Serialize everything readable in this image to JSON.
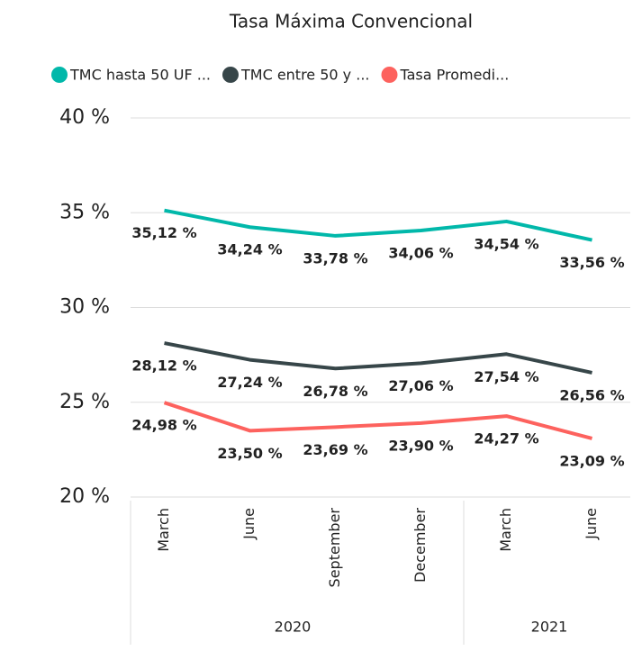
{
  "chart_data": {
    "type": "line",
    "title": "Tasa Máxima Convencional",
    "categories": [
      "March",
      "June",
      "September",
      "December",
      "March",
      "June"
    ],
    "category_years": [
      "2020",
      null,
      null,
      null,
      "2021",
      null
    ],
    "series": [
      {
        "name": "TMC hasta 50 UF ...",
        "color": "#01B8AA",
        "values": [
          35.12,
          34.24,
          33.78,
          34.06,
          34.54,
          33.56
        ],
        "value_labels": [
          "35,12 %",
          "34,24 %",
          "33,78 %",
          "34,06 %",
          "34,54 %",
          "33,56 %"
        ]
      },
      {
        "name": "TMC entre 50 y ...",
        "color": "#374649",
        "values": [
          28.12,
          27.24,
          26.78,
          27.06,
          27.54,
          26.56
        ],
        "value_labels": [
          "28,12 %",
          "27,24 %",
          "26,78 %",
          "27,06 %",
          "27,54 %",
          "26,56 %"
        ]
      },
      {
        "name": "Tasa Promedi...",
        "color": "#FD625E",
        "values": [
          24.98,
          23.5,
          23.69,
          23.9,
          24.27,
          23.09
        ],
        "value_labels": [
          "24,98 %",
          "23,50 %",
          "23,69 %",
          "23,90 %",
          "24,27 %",
          "23,09 %"
        ]
      }
    ],
    "ylim": [
      20,
      40
    ],
    "yticks": [
      {
        "value": 20,
        "label": "20 %"
      },
      {
        "value": 25,
        "label": "25 %"
      },
      {
        "value": 30,
        "label": "30 %"
      },
      {
        "value": 35,
        "label": "35 %"
      },
      {
        "value": 40,
        "label": "40 %"
      }
    ],
    "grid": true,
    "legend": "top"
  }
}
